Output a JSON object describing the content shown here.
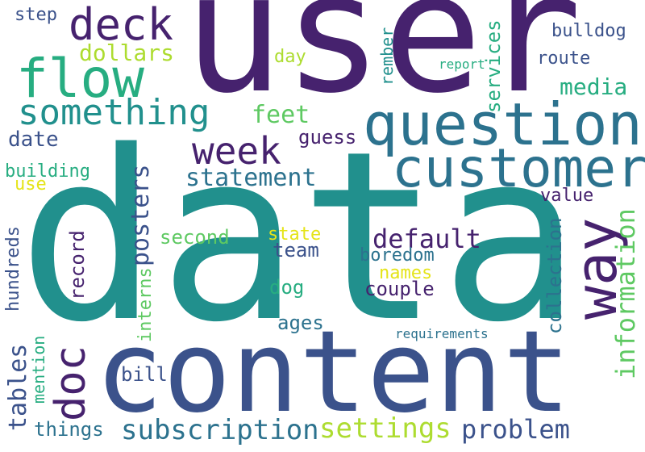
{
  "words": {
    "data": "data",
    "user": "user",
    "content": "content",
    "question": "question",
    "customer": "customer",
    "flow": "flow",
    "deck": "deck",
    "something": "something",
    "way": "way",
    "doc": "doc",
    "week": "week",
    "subscription": "subscription",
    "settings": "settings",
    "problem": "problem",
    "default": "default",
    "information": "information",
    "statement": "statement",
    "feet": "feet",
    "media": "media",
    "posters": "posters",
    "tables": "tables",
    "dollars": "dollars",
    "date": "date",
    "guess": "guess",
    "boredom": "boredom",
    "route": "route",
    "bulldog": "bulldog",
    "building": "building",
    "couple": "couple",
    "services": "services",
    "collection": "collection",
    "team": "team",
    "value": "value",
    "second": "second",
    "state": "state",
    "dog": "dog",
    "ages": "ages",
    "names": "names",
    "record": "record",
    "hundreds": "hundreds",
    "interns": "interns",
    "bill": "bill",
    "things": "things",
    "step": "step",
    "day": "day",
    "rember": "rember",
    "mention": "mention",
    "use": "use",
    "report": "report",
    "requirements": "requirements"
  },
  "palette": {
    "dark_purple": "#46226e",
    "indigo": "#414487",
    "slate_blue": "#3b528b",
    "blue_teal": "#2c728e",
    "teal": "#21908d",
    "green_teal": "#27ad81",
    "green": "#5ec962",
    "yellow_green": "#addc30",
    "yellow": "#e5e419"
  }
}
